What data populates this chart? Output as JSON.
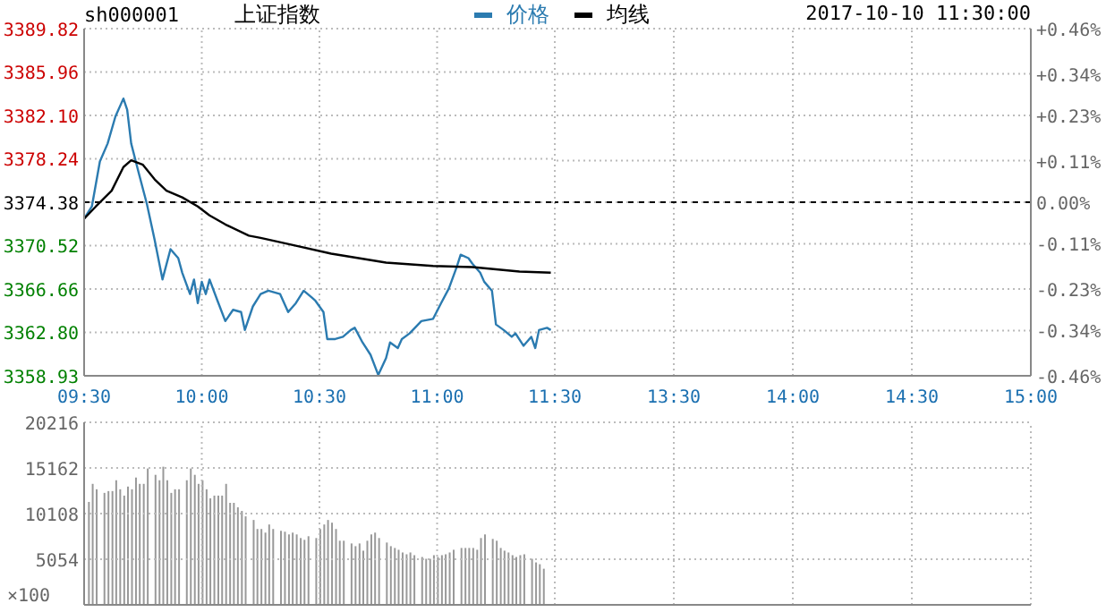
{
  "chart_data": [
    {
      "type": "line",
      "title": "上证指数",
      "subtitle": "sh000001",
      "legend": "top",
      "grid": true,
      "xlim": [
        9.5,
        11.5
      ],
      "xticks": [
        {
          "value": 9.5,
          "label": "09:30"
        },
        {
          "value": 10,
          "label": "10:00"
        },
        {
          "value": 10.5,
          "label": "10:30"
        },
        {
          "value": 11,
          "label": "11:00"
        },
        {
          "value": 11.5,
          "label": "11:30"
        }
      ],
      "ylim": [
        3358.93,
        3389.82
      ],
      "yticks": [
        3358.93,
        {
          "value": 3362.8,
          "label": "3362.80"
        },
        3366.66,
        3370.52,
        3374.38,
        3378.24,
        {
          "value": 3382.1,
          "label": "3382.10"
        },
        3385.96,
        3389.82
      ],
      "ref_lines": [
        {
          "axis": "y",
          "value": 3374.38,
          "color": "#000000",
          "line_style": "dashed"
        }
      ],
      "series": [
        {
          "name": "价格",
          "color": "#2b7bb0",
          "x": [
            9.5,
            9.533,
            9.567,
            9.6,
            9.633,
            9.667,
            9.683,
            9.7,
            9.733,
            9.767,
            9.8,
            9.833,
            9.867,
            9.9,
            9.917,
            9.95,
            9.967,
            9.983,
            10.0,
            10.017,
            10.033,
            10.067,
            10.1,
            10.133,
            10.167,
            10.183,
            10.217,
            10.25,
            10.283,
            10.333,
            10.367,
            10.4,
            10.433,
            10.467,
            10.483,
            10.517,
            10.533,
            10.567,
            10.6,
            10.633,
            10.65,
            10.683,
            10.717,
            10.75,
            10.783,
            10.8,
            10.833,
            10.85,
            10.883,
            10.933,
            10.983,
            11.017,
            11.05,
            11.083,
            11.1,
            11.133,
            11.15,
            11.183,
            11.2,
            11.233,
            11.25,
            11.283,
            11.317,
            11.333,
            11.367,
            11.4,
            11.417,
            11.433,
            11.467,
            11.483
          ],
          "values": [
            3372.9,
            3374.0,
            3378.0,
            3379.6,
            3382.0,
            3383.6,
            3382.6,
            3379.6,
            3376.9,
            3374.2,
            3371.0,
            3367.5,
            3370.2,
            3369.4,
            3368.1,
            3366.2,
            3367.5,
            3365.4,
            3367.3,
            3366.2,
            3367.5,
            3365.6,
            3363.8,
            3364.8,
            3364.6,
            3363.0,
            3365.1,
            3366.2,
            3366.5,
            3366.2,
            3364.6,
            3365.4,
            3366.5,
            3365.9,
            3365.6,
            3364.6,
            3362.2,
            3362.2,
            3362.4,
            3363.0,
            3363.2,
            3361.9,
            3360.8,
            3359.0,
            3360.5,
            3361.9,
            3361.4,
            3362.2,
            3362.7,
            3363.8,
            3364.0,
            3365.4,
            3366.7,
            3368.6,
            3369.7,
            3369.4,
            3368.9,
            3368.1,
            3367.3,
            3366.5,
            3363.5,
            3363.0,
            3362.4,
            3362.7,
            3361.6,
            3362.4,
            3361.4,
            3363.0,
            3363.2,
            3363.0
          ]
        },
        {
          "name": "均线",
          "color": "#000000",
          "x": [
            9.5,
            9.55,
            9.617,
            9.667,
            9.7,
            9.75,
            9.8,
            9.85,
            9.917,
            9.983,
            10.033,
            10.1,
            10.2,
            10.25,
            10.4,
            10.55,
            10.783,
            10.983,
            11.15,
            11.35,
            11.483
          ],
          "values": [
            3372.9,
            3374.0,
            3375.4,
            3377.5,
            3378.1,
            3377.7,
            3376.4,
            3375.4,
            3374.8,
            3374.0,
            3373.2,
            3372.4,
            3371.4,
            3371.2,
            3370.5,
            3369.8,
            3369.0,
            3368.7,
            3368.6,
            3368.2,
            3368.1
          ]
        }
      ]
    },
    {
      "type": "line",
      "annotations": [
        "2017-10-10 11:30:00"
      ],
      "grid": true,
      "xlim": [
        13,
        15
      ],
      "xticks": [
        {
          "value": 13.5,
          "label": "13:30"
        },
        {
          "value": 14,
          "label": "14:00"
        },
        {
          "value": 14.5,
          "label": "14:30"
        },
        {
          "value": 15,
          "label": "15:00"
        }
      ],
      "y2lim": [
        -0.46,
        0.46
      ],
      "y2ticks": [
        {
          "value": -0.46,
          "label": "-0.46%"
        },
        {
          "value": -0.34,
          "label": "-0.34%"
        },
        {
          "value": -0.23,
          "label": "-0.23%"
        },
        {
          "value": -0.11,
          "label": "-0.11%"
        },
        {
          "value": 0,
          "label": "0.00%"
        },
        {
          "value": 0.11,
          "label": "+0.11%"
        },
        {
          "value": 0.23,
          "label": "+0.23%"
        },
        {
          "value": 0.34,
          "label": "+0.34%"
        },
        {
          "value": 0.46,
          "label": "+0.46%"
        }
      ],
      "ref_lines": [
        {
          "axis": "y2",
          "value": 0,
          "color": "#000000",
          "line_style": "dashed"
        }
      ]
    },
    {
      "type": "bar",
      "grid": true,
      "tick_labels": "y",
      "color": "#999999",
      "ylabel": "×100",
      "xlim": [
        9.5,
        11.5
      ],
      "xticks": [
        9.5,
        10,
        10.5,
        11,
        11.5
      ],
      "ylim": [
        0,
        20216
      ],
      "yticks": [
        5054,
        10108,
        15162,
        20216
      ],
      "x": [
        9.517,
        9.533,
        9.55,
        9.583,
        9.6,
        9.617,
        9.633,
        9.65,
        9.667,
        9.683,
        9.7,
        9.717,
        9.733,
        9.75,
        9.767,
        9.8,
        9.817,
        9.833,
        9.85,
        9.867,
        9.883,
        9.9,
        9.933,
        9.95,
        9.967,
        9.983,
        10.0,
        10.017,
        10.033,
        10.05,
        10.067,
        10.083,
        10.1,
        10.117,
        10.133,
        10.15,
        10.167,
        10.183,
        10.217,
        10.233,
        10.25,
        10.267,
        10.283,
        10.3,
        10.333,
        10.35,
        10.367,
        10.383,
        10.4,
        10.417,
        10.433,
        10.45,
        10.483,
        10.5,
        10.517,
        10.533,
        10.55,
        10.567,
        10.583,
        10.6,
        10.633,
        10.65,
        10.667,
        10.683,
        10.7,
        10.717,
        10.733,
        10.75,
        10.783,
        10.8,
        10.817,
        10.833,
        10.85,
        10.867,
        10.883,
        10.9,
        10.933,
        10.95,
        10.967,
        10.983,
        11.0,
        11.017,
        11.033,
        11.05,
        11.067,
        11.1,
        11.117,
        11.133,
        11.15,
        11.167,
        11.183,
        11.2,
        11.233,
        11.25,
        11.267,
        11.283,
        11.3,
        11.317,
        11.333,
        11.35,
        11.367,
        11.4,
        11.417,
        11.433,
        11.45
      ],
      "values": [
        11400,
        13400,
        12800,
        12400,
        12600,
        12600,
        13800,
        12800,
        12100,
        13100,
        12800,
        14100,
        13400,
        13400,
        15100,
        14400,
        13800,
        15300,
        13800,
        12400,
        12800,
        12800,
        13800,
        15100,
        14400,
        13400,
        13800,
        12800,
        11800,
        12100,
        12100,
        12100,
        13400,
        11300,
        11300,
        10800,
        10400,
        9800,
        9400,
        8400,
        8400,
        8000,
        8900,
        8400,
        8200,
        8100,
        7800,
        8000,
        7800,
        7400,
        7200,
        7600,
        7400,
        8400,
        8900,
        9400,
        9100,
        8400,
        7100,
        7100,
        6800,
        6500,
        6800,
        6000,
        7100,
        7800,
        8000,
        7400,
        6900,
        6500,
        6300,
        6100,
        5800,
        5600,
        5800,
        5500,
        5300,
        5100,
        5100,
        5500,
        5300,
        5500,
        5600,
        5800,
        6100,
        6300,
        6300,
        6300,
        6300,
        6100,
        7400,
        7800,
        7300,
        7100,
        6300,
        6000,
        5800,
        5500,
        5300,
        5500,
        5600,
        5100,
        4700,
        4500,
        4000
      ]
    },
    {
      "type": "bar",
      "grid": true,
      "tick_labels": false,
      "xlim": [
        13,
        15
      ],
      "xticks": [
        13.5,
        14,
        14.5,
        15
      ],
      "ylim": [
        0,
        20216
      ],
      "yticks": [
        5054,
        10108,
        15162,
        20216
      ]
    }
  ]
}
